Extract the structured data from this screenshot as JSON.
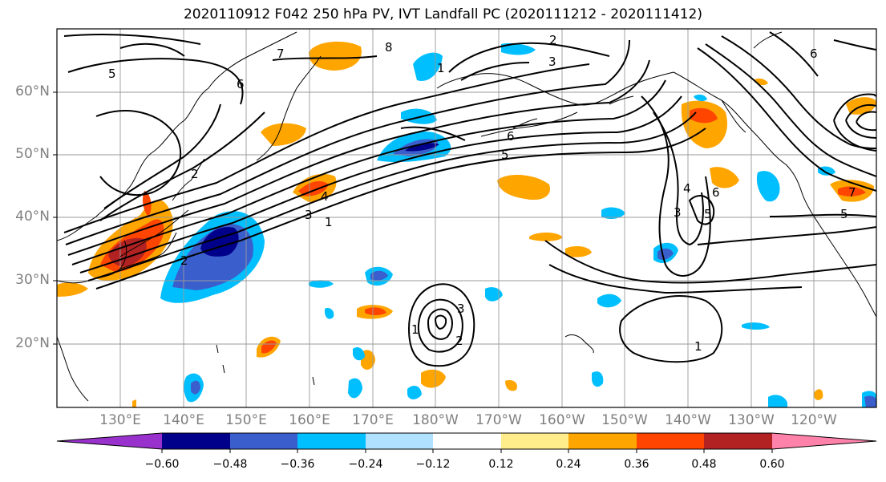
{
  "title": "2020110912 F042 250 hPa PV, IVT Landfall PC (2020111212 - 2020111412)",
  "lat_labels": [
    "60°N",
    "50°N",
    "40°N",
    "30°N",
    "20°N"
  ],
  "lon_labels": [
    "130°E",
    "140°E",
    "150°E",
    "160°E",
    "170°E",
    "180°W",
    "170°W",
    "160°W",
    "150°W",
    "140°W",
    "130°W",
    "120°W"
  ],
  "colorbar": {
    "colors": [
      "#9932cc",
      "#00008b",
      "#3a5fcd",
      "#00bfff",
      "#b0e2ff",
      "#ffffff",
      "#ffec8b",
      "#ffa500",
      "#ff4500",
      "#b22222",
      "#ff82ab"
    ],
    "ticks": [
      "−0.60",
      "−0.48",
      "−0.36",
      "−0.24",
      "−0.12",
      "0.12",
      "0.24",
      "0.36",
      "0.48",
      "0.60"
    ]
  },
  "contour_labels": [
    "5",
    "6",
    "7",
    "8",
    "2",
    "3",
    "1",
    "4",
    "5",
    "6",
    "2",
    "3",
    "1",
    "1",
    "2",
    "3",
    "6",
    "5",
    "4",
    "3",
    "2",
    "1",
    "7",
    "6",
    "5"
  ],
  "colors": {
    "frame": "#000000",
    "grid": "#999999",
    "coast": "#000000",
    "label": "#7f7f7f"
  }
}
